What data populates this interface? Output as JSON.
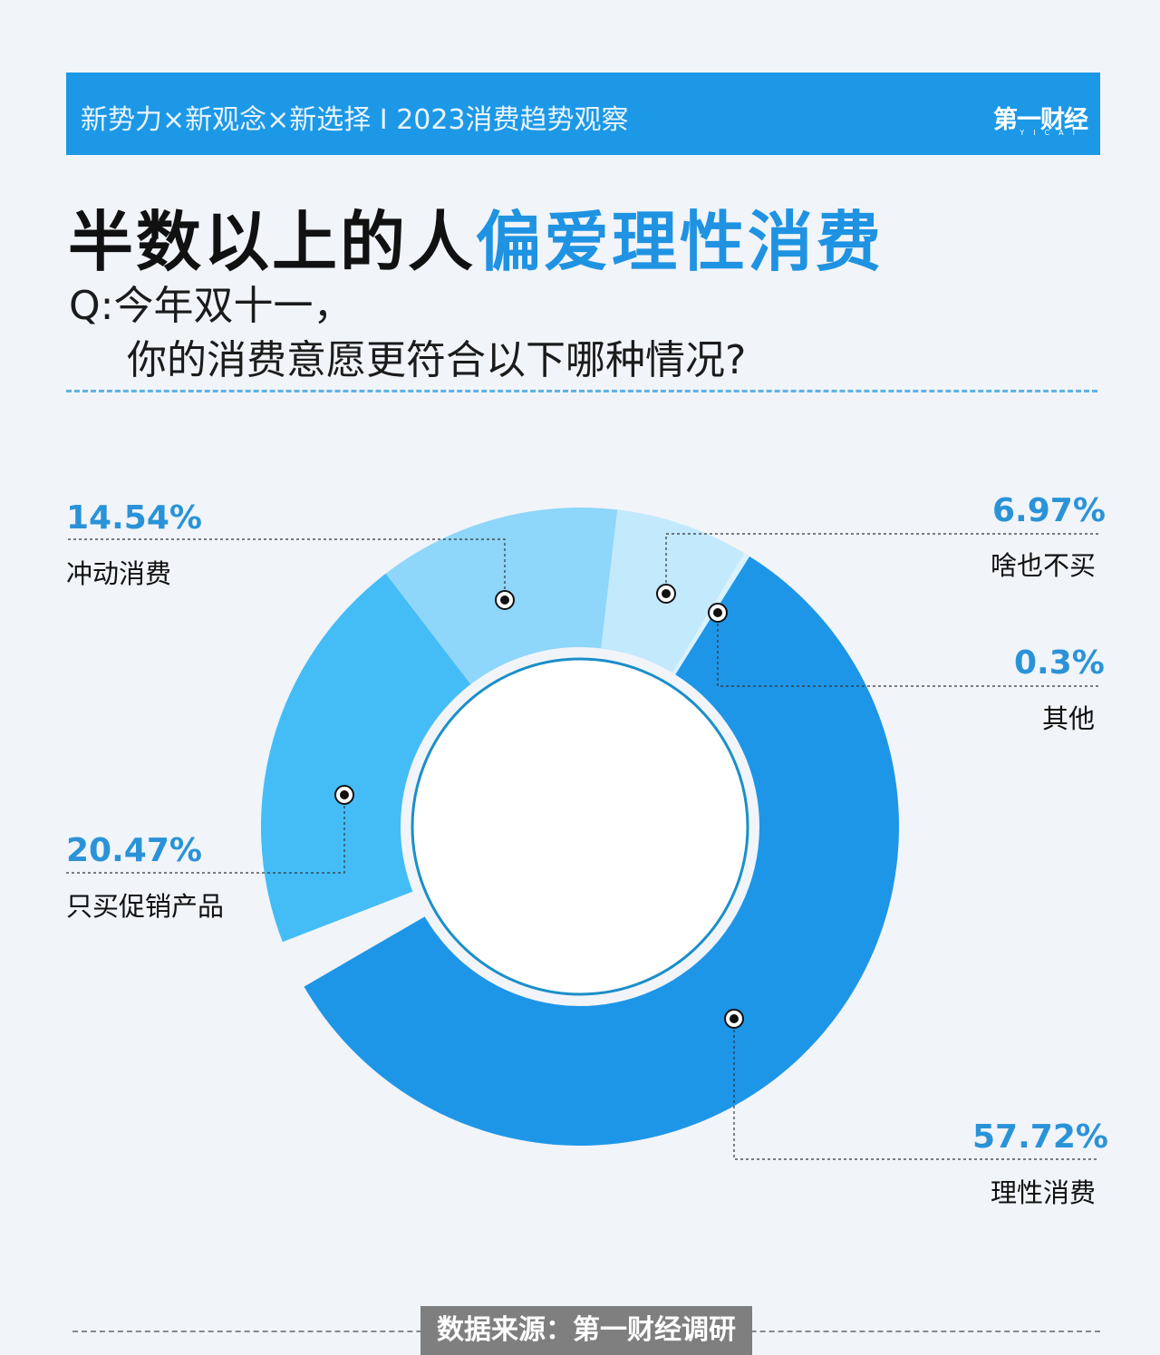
{
  "header": {
    "banner_text": "新势力×新观念×新选择 I 2023消费趋势观察",
    "logo_text": "第一财经",
    "logo_sub": "YICAI"
  },
  "headline": {
    "part1": "半数以上的人",
    "part2": "偏爱理性消费"
  },
  "question": {
    "line1": "Q:今年双十一，",
    "line2": "你的消费意愿更符合以下哪种情况?"
  },
  "footer": {
    "source": "数据来源：第一财经调研"
  },
  "colors": {
    "banner": "#1c98e6",
    "accent": "#1f93e2",
    "rational": "#1e96e8",
    "promo": "#44bdf6",
    "impulse": "#8ed6fa",
    "nothing": "#c3e9fc",
    "other": "#d9f2fd"
  },
  "chart_data": {
    "type": "pie",
    "style": "donut",
    "title": "",
    "slices": [
      {
        "label": "理性消费",
        "value": 57.72,
        "display": "57.72%",
        "color": "#1e96e8"
      },
      {
        "label": "只买促销产品",
        "value": 20.47,
        "display": "20.47%",
        "color": "#44bdf6"
      },
      {
        "label": "冲动消费",
        "value": 14.54,
        "display": "14.54%",
        "color": "#8ed6fa"
      },
      {
        "label": "啥也不买",
        "value": 6.97,
        "display": "6.97%",
        "color": "#c3e9fc"
      },
      {
        "label": "其他",
        "value": 0.3,
        "display": "0.3%",
        "color": "#d9f2fd"
      }
    ]
  }
}
